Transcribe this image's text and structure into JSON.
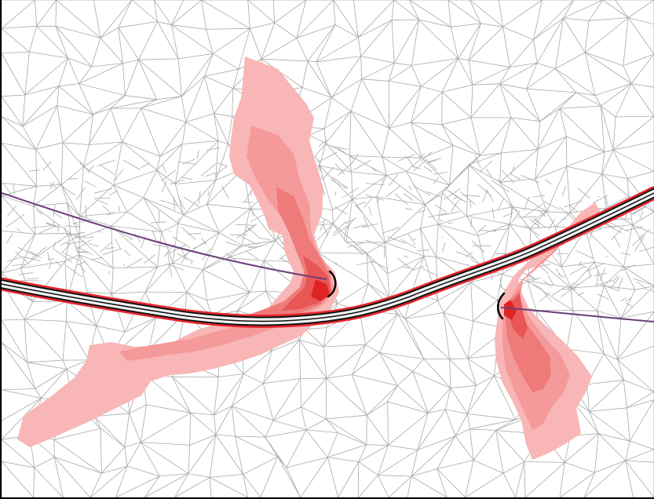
{
  "view": {
    "background": "#ffffff",
    "frame_color": "#000000"
  },
  "mesh": {
    "line_color": "#a9a9a9"
  },
  "road": {
    "outer_color": "#e8262e",
    "inner_color": "#111111",
    "fill_color": "#f2f2f2"
  },
  "pipeline": {
    "color": "#6b3d78"
  },
  "plume": {
    "colors": [
      "#f8b6b6",
      "#f49a9a",
      "#ee7a7a",
      "#e85656",
      "#e02424"
    ]
  },
  "outfall_marker": {
    "color": "#000000"
  }
}
